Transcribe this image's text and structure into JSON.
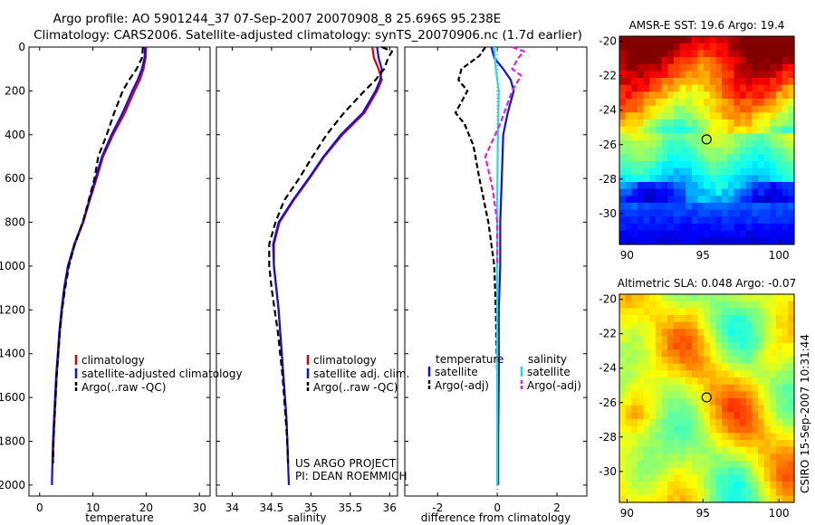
{
  "header": {
    "title_line1": "Argo profile: AO 5901244_37 07-Sep-2007 20070908_8 25.696S 95.238E",
    "title_line2": "Climatology: CARS2006. Satellite-adjusted climatology: synTS_20070906.nc (1.7d earlier)"
  },
  "side_label": "CSIRO 15-Sep-2007 10:31:44",
  "colors": {
    "climatology": "#dd0000",
    "satellite": "#1010e0",
    "argo": "#000000",
    "satellite_salinity": "#22dddd",
    "argo_salinity_adj": "#e020e0"
  },
  "chart_data": [
    {
      "id": "temperature",
      "type": "line",
      "xlabel": "temperature",
      "ylabel": "",
      "xlim": [
        -2,
        32
      ],
      "ylim": [
        2050,
        0
      ],
      "xticks": [
        0,
        10,
        20,
        30
      ],
      "yticks": [
        0,
        200,
        400,
        600,
        800,
        1000,
        1200,
        1400,
        1600,
        1800,
        2000
      ],
      "legend": [
        "climatology",
        "satellite-adjusted climatology",
        "Argo(..raw -QC)"
      ],
      "legend_position": "lower-right",
      "series": [
        {
          "name": "climatology",
          "color_key": "climatology",
          "dash": "",
          "points": [
            [
              20.0,
              0
            ],
            [
              19.9,
              50
            ],
            [
              19.5,
              100
            ],
            [
              18.8,
              150
            ],
            [
              17.8,
              200
            ],
            [
              16.0,
              300
            ],
            [
              13.8,
              400
            ],
            [
              11.9,
              500
            ],
            [
              10.7,
              600
            ],
            [
              9.4,
              700
            ],
            [
              8.2,
              800
            ],
            [
              6.6,
              900
            ],
            [
              5.4,
              1000
            ],
            [
              4.7,
              1100
            ],
            [
              4.2,
              1200
            ],
            [
              3.8,
              1300
            ],
            [
              3.5,
              1400
            ],
            [
              3.2,
              1500
            ],
            [
              3.0,
              1600
            ],
            [
              2.8,
              1700
            ],
            [
              2.6,
              1800
            ],
            [
              2.5,
              1900
            ]
          ]
        },
        {
          "name": "satellite-adjusted climatology",
          "color_key": "satellite",
          "dash": "",
          "points": [
            [
              19.8,
              0
            ],
            [
              19.7,
              50
            ],
            [
              19.2,
              100
            ],
            [
              18.4,
              150
            ],
            [
              17.4,
              200
            ],
            [
              15.6,
              300
            ],
            [
              13.5,
              400
            ],
            [
              11.7,
              500
            ],
            [
              10.5,
              600
            ],
            [
              9.3,
              700
            ],
            [
              8.1,
              800
            ],
            [
              6.5,
              900
            ],
            [
              5.3,
              1000
            ],
            [
              4.6,
              1100
            ],
            [
              4.1,
              1200
            ],
            [
              3.7,
              1300
            ],
            [
              3.4,
              1400
            ],
            [
              3.1,
              1500
            ],
            [
              2.9,
              1600
            ],
            [
              2.7,
              1700
            ],
            [
              2.5,
              1800
            ],
            [
              2.4,
              1900
            ],
            [
              2.3,
              2000
            ]
          ]
        },
        {
          "name": "Argo(..raw -QC)",
          "color_key": "argo",
          "dash": "7,4",
          "points": [
            [
              19.4,
              0
            ],
            [
              19.2,
              50
            ],
            [
              18.2,
              100
            ],
            [
              16.8,
              150
            ],
            [
              15.6,
              200
            ],
            [
              14.0,
              300
            ],
            [
              12.6,
              400
            ],
            [
              11.0,
              500
            ],
            [
              10.3,
              600
            ],
            [
              9.2,
              700
            ],
            [
              8.1,
              800
            ],
            [
              6.6,
              900
            ],
            [
              5.5,
              1000
            ],
            [
              4.8,
              1100
            ],
            [
              4.2,
              1200
            ],
            [
              3.8,
              1300
            ],
            [
              3.5,
              1400
            ],
            [
              3.2,
              1500
            ],
            [
              3.0,
              1600
            ],
            [
              2.8,
              1700
            ],
            [
              2.6,
              1800
            ],
            [
              2.5,
              1900
            ]
          ]
        }
      ]
    },
    {
      "id": "salinity",
      "type": "line",
      "xlabel": "salinity",
      "ylabel": "",
      "xlim": [
        33.8,
        36.1
      ],
      "ylim": [
        2050,
        0
      ],
      "xticks": [
        34,
        34.5,
        35,
        35.5,
        36
      ],
      "yticks": [],
      "legend": [
        "climatology",
        "satellite adj. clim.",
        "Argo(..raw -QC)"
      ],
      "legend_position": "lower-right",
      "note_lines": [
        "US ARGO PROJECT",
        "PI: DEAN ROEMMICH"
      ],
      "series": [
        {
          "name": "climatology",
          "color_key": "climatology",
          "dash": "",
          "points": [
            [
              35.78,
              0
            ],
            [
              35.8,
              50
            ],
            [
              35.86,
              100
            ],
            [
              35.9,
              150
            ],
            [
              35.84,
              200
            ],
            [
              35.68,
              300
            ],
            [
              35.4,
              400
            ],
            [
              35.17,
              500
            ],
            [
              34.98,
              600
            ],
            [
              34.78,
              700
            ],
            [
              34.6,
              800
            ],
            [
              34.53,
              900
            ],
            [
              34.53,
              1000
            ],
            [
              34.56,
              1100
            ],
            [
              34.59,
              1200
            ],
            [
              34.61,
              1300
            ],
            [
              34.63,
              1400
            ],
            [
              34.65,
              1500
            ],
            [
              34.67,
              1600
            ],
            [
              34.69,
              1700
            ],
            [
              34.7,
              1800
            ],
            [
              34.71,
              1900
            ]
          ]
        },
        {
          "name": "satellite adj. clim.",
          "color_key": "satellite",
          "dash": "",
          "points": [
            [
              35.84,
              0
            ],
            [
              35.86,
              50
            ],
            [
              35.9,
              100
            ],
            [
              35.88,
              150
            ],
            [
              35.82,
              200
            ],
            [
              35.66,
              300
            ],
            [
              35.38,
              400
            ],
            [
              35.16,
              500
            ],
            [
              34.97,
              600
            ],
            [
              34.77,
              700
            ],
            [
              34.59,
              800
            ],
            [
              34.52,
              900
            ],
            [
              34.53,
              1000
            ],
            [
              34.56,
              1100
            ],
            [
              34.59,
              1200
            ],
            [
              34.61,
              1300
            ],
            [
              34.63,
              1400
            ],
            [
              34.65,
              1500
            ],
            [
              34.67,
              1600
            ],
            [
              34.69,
              1700
            ],
            [
              34.7,
              1800
            ],
            [
              34.71,
              1900
            ],
            [
              34.72,
              2000
            ]
          ]
        },
        {
          "name": "Argo(..raw -QC)",
          "color_key": "argo",
          "dash": "7,4",
          "points": [
            [
              35.9,
              0
            ],
            [
              36.03,
              20
            ],
            [
              35.98,
              50
            ],
            [
              35.93,
              100
            ],
            [
              35.82,
              150
            ],
            [
              35.68,
              200
            ],
            [
              35.42,
              300
            ],
            [
              35.2,
              400
            ],
            [
              35.02,
              500
            ],
            [
              34.85,
              600
            ],
            [
              34.66,
              700
            ],
            [
              34.55,
              800
            ],
            [
              34.47,
              900
            ],
            [
              34.47,
              1000
            ],
            [
              34.5,
              1100
            ],
            [
              34.54,
              1200
            ],
            [
              34.58,
              1300
            ],
            [
              34.61,
              1400
            ],
            [
              34.64,
              1500
            ],
            [
              34.66,
              1600
            ],
            [
              34.68,
              1700
            ],
            [
              34.7,
              1800
            ],
            [
              34.71,
              1900
            ]
          ]
        }
      ]
    },
    {
      "id": "difference",
      "type": "line",
      "xlabel": "difference from climatology",
      "ylabel": "",
      "xlim": [
        -3.1,
        3.0
      ],
      "ylim": [
        2050,
        0
      ],
      "xticks": [
        -2,
        0,
        2
      ],
      "yticks": [],
      "legend_headers": [
        "temperature",
        "salinity"
      ],
      "legend": [
        "satellite",
        "Argo(-adj)",
        "satellite",
        "Argo(-adj)"
      ],
      "legend_position": "lower-center",
      "series": [
        {
          "name": "satellite",
          "group": "temperature",
          "color_key": "satellite",
          "dash": "",
          "points": [
            [
              -0.2,
              0
            ],
            [
              -0.1,
              50
            ],
            [
              0.2,
              100
            ],
            [
              0.45,
              150
            ],
            [
              0.55,
              200
            ],
            [
              0.35,
              300
            ],
            [
              0.2,
              400
            ],
            [
              0.15,
              600
            ],
            [
              0.1,
              800
            ],
            [
              0.1,
              1000
            ],
            [
              0.05,
              1200
            ],
            [
              0.05,
              1500
            ],
            [
              0.03,
              1800
            ],
            [
              0.03,
              2000
            ]
          ]
        },
        {
          "name": "Argo(-adj)",
          "group": "temperature",
          "color_key": "argo",
          "dash": "6,3",
          "points": [
            [
              -0.4,
              0
            ],
            [
              -0.6,
              40
            ],
            [
              -1.2,
              100
            ],
            [
              -1.3,
              150
            ],
            [
              -1.0,
              200
            ],
            [
              -1.2,
              250
            ],
            [
              -1.4,
              300
            ],
            [
              -1.1,
              350
            ],
            [
              -0.8,
              450
            ],
            [
              -0.6,
              600
            ],
            [
              -0.3,
              800
            ],
            [
              -0.1,
              1000
            ],
            [
              -0.05,
              1200
            ],
            [
              0,
              1500
            ]
          ]
        },
        {
          "name": "satellite",
          "group": "salinity",
          "color_key": "satellite_salinity",
          "dash": "",
          "points": [
            [
              -0.1,
              0
            ],
            [
              -0.05,
              100
            ],
            [
              0.05,
              200
            ],
            [
              0.02,
              400
            ],
            [
              0.0,
              700
            ],
            [
              0.0,
              1000
            ],
            [
              0.0,
              1500
            ],
            [
              0.0,
              2000
            ]
          ]
        },
        {
          "name": "Argo(-adj)",
          "group": "salinity",
          "color_key": "argo_salinity_adj",
          "dash": "6,3",
          "points": [
            [
              0.5,
              0
            ],
            [
              0.9,
              20
            ],
            [
              0.7,
              50
            ],
            [
              0.5,
              100
            ],
            [
              0.8,
              130
            ],
            [
              0.5,
              200
            ],
            [
              0.1,
              350
            ],
            [
              -0.4,
              500
            ],
            [
              -0.15,
              650
            ],
            [
              0,
              800
            ],
            [
              0,
              1000
            ]
          ]
        }
      ]
    },
    {
      "id": "sst-map",
      "type": "heatmap",
      "title": "AMSR-E SST: 19.6 Argo: 19.4",
      "xlim": [
        89.5,
        101
      ],
      "ylim": [
        -31.8,
        -19.7
      ],
      "xticks": [
        90,
        95,
        100
      ],
      "yticks": [
        -20,
        -22,
        -24,
        -26,
        -28,
        -30
      ],
      "marker": {
        "lon": 95.238,
        "lat": -25.696
      },
      "colorscale": "jet"
    },
    {
      "id": "sla-map",
      "type": "heatmap",
      "title": "Altimetric SLA: 0.048 Argo: -0.07",
      "xlim": [
        89.5,
        101
      ],
      "ylim": [
        -31.8,
        -19.7
      ],
      "xticks": [
        90,
        95,
        100
      ],
      "yticks": [
        -20,
        -22,
        -24,
        -26,
        -28,
        -30
      ],
      "marker": {
        "lon": 95.238,
        "lat": -25.696
      },
      "colorscale": "jet"
    }
  ]
}
